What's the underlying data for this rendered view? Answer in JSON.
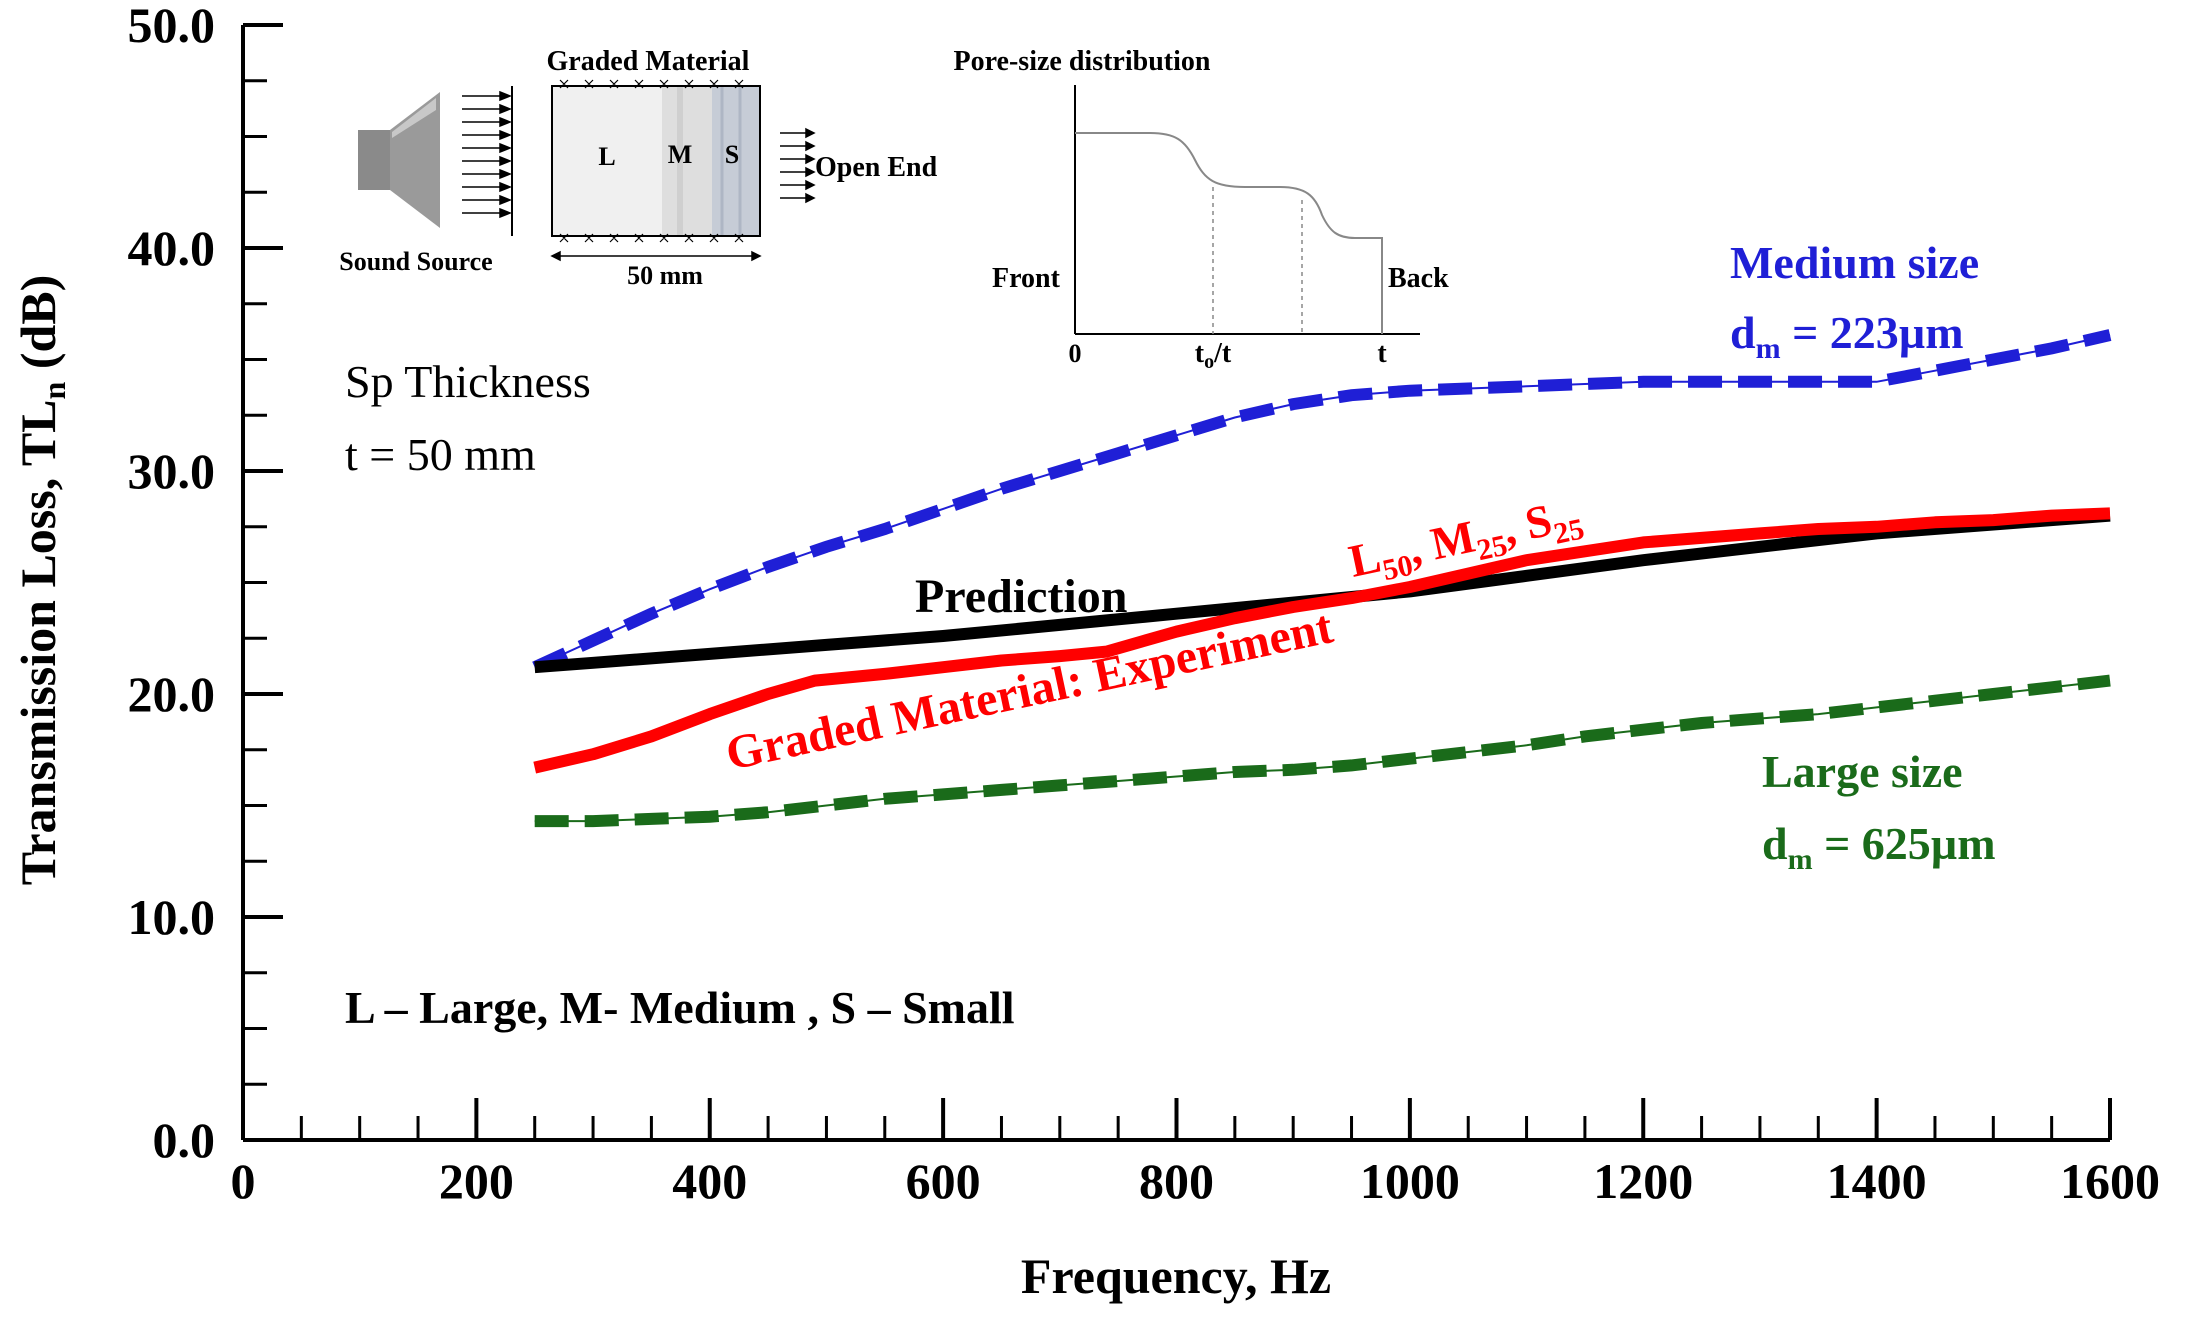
{
  "chart_data": {
    "type": "line",
    "title": "",
    "xlabel": "Frequency, Hz",
    "ylabel": "Transmission Loss, TL",
    "ylabel_sub": "n",
    "ylabel_unit": " (dB)",
    "xlim": [
      0,
      1600
    ],
    "ylim": [
      0,
      50
    ],
    "x_ticks": [
      0,
      200,
      400,
      600,
      800,
      1000,
      1200,
      1400,
      1600
    ],
    "x_tick_labels": [
      "0",
      "200",
      "400",
      "600",
      "800",
      "1000",
      "1200",
      "1400",
      "1600"
    ],
    "y_ticks": [
      0,
      10,
      20,
      30,
      40,
      50
    ],
    "y_tick_labels": [
      "0.0",
      "10.0",
      "20.0",
      "30.0",
      "40.0",
      "50.0"
    ],
    "grid": false,
    "series": [
      {
        "name": "Medium size d_m = 223µm",
        "color": "#1f1fd6",
        "style": "dashed",
        "x": [
          250,
          300,
          350,
          400,
          450,
          500,
          550,
          600,
          650,
          700,
          750,
          800,
          850,
          900,
          950,
          1000,
          1050,
          1100,
          1150,
          1200,
          1250,
          1300,
          1350,
          1400,
          1450,
          1500,
          1550,
          1600
        ],
        "y": [
          21.2,
          22.4,
          23.6,
          24.7,
          25.7,
          26.6,
          27.4,
          28.3,
          29.2,
          30.0,
          30.8,
          31.6,
          32.4,
          33.0,
          33.4,
          33.6,
          33.7,
          33.8,
          33.9,
          34.0,
          34.0,
          34.0,
          34.0,
          34.0,
          34.5,
          35.0,
          35.5,
          36.1
        ]
      },
      {
        "name": "Prediction",
        "color": "#000000",
        "style": "solid",
        "x": [
          250,
          300,
          400,
          500,
          600,
          700,
          800,
          900,
          1000,
          1100,
          1200,
          1300,
          1400,
          1500,
          1600
        ],
        "y": [
          21.2,
          21.4,
          21.8,
          22.2,
          22.6,
          23.1,
          23.6,
          24.1,
          24.6,
          25.3,
          26.0,
          26.6,
          27.2,
          27.6,
          28.0
        ]
      },
      {
        "name": "Graded Material: Experiment (L50, M25, S25)",
        "color": "#ff0000",
        "style": "solid",
        "x": [
          250,
          300,
          350,
          400,
          450,
          490,
          550,
          600,
          650,
          700,
          740,
          800,
          850,
          900,
          950,
          1000,
          1050,
          1100,
          1150,
          1200,
          1250,
          1300,
          1350,
          1400,
          1450,
          1500,
          1550,
          1600
        ],
        "y": [
          16.7,
          17.3,
          18.1,
          19.1,
          20.0,
          20.6,
          20.9,
          21.2,
          21.5,
          21.7,
          21.9,
          22.8,
          23.4,
          23.9,
          24.3,
          24.8,
          25.4,
          26.0,
          26.4,
          26.8,
          27.0,
          27.2,
          27.4,
          27.5,
          27.7,
          27.8,
          28.0,
          28.1
        ]
      },
      {
        "name": "Large size d_m = 625µm",
        "color": "#1a6b1a",
        "style": "dashed",
        "x": [
          250,
          300,
          350,
          400,
          450,
          500,
          550,
          600,
          650,
          700,
          750,
          800,
          850,
          900,
          950,
          1000,
          1050,
          1100,
          1150,
          1200,
          1250,
          1300,
          1350,
          1400,
          1450,
          1500,
          1550,
          1600
        ],
        "y": [
          14.3,
          14.3,
          14.4,
          14.5,
          14.7,
          15.0,
          15.3,
          15.5,
          15.7,
          15.9,
          16.1,
          16.3,
          16.5,
          16.6,
          16.8,
          17.1,
          17.4,
          17.7,
          18.1,
          18.4,
          18.7,
          18.9,
          19.1,
          19.4,
          19.7,
          20.0,
          20.3,
          20.6
        ]
      }
    ]
  },
  "annotations": {
    "medium_label": "Medium size",
    "medium_dm_prefix": "d",
    "medium_dm_sub": "m",
    "medium_dm_value": " = 223µm",
    "large_label": "Large size",
    "large_dm_prefix": "d",
    "large_dm_sub": "m",
    "large_dm_value": " = 625µm",
    "prediction_label": "Prediction",
    "experiment_label": "Graded Material: Experiment",
    "exp_L": "L",
    "exp_L_sub": "50",
    "exp_M": ", M",
    "exp_M_sub": "25",
    "exp_S": ", S",
    "exp_S_sub": "25",
    "thickness_line1": "Sp Thickness",
    "thickness_line2": "t = 50 mm",
    "legend_key": "L – Large, M- Medium , S – Small"
  },
  "inset_schematic": {
    "title": "Graded Material",
    "source_label": "Sound Source",
    "end_label": "Open End",
    "region_L": "L",
    "region_M": "M",
    "region_S": "S",
    "thickness_label": "50 mm"
  },
  "inset_distribution": {
    "title": "Pore-size distribution",
    "front_label": "Front",
    "back_label": "Back",
    "x_zero": "0",
    "x_mid_t": "t",
    "x_mid_sub": "o",
    "x_mid_rest": "/t",
    "x_end": "t"
  }
}
